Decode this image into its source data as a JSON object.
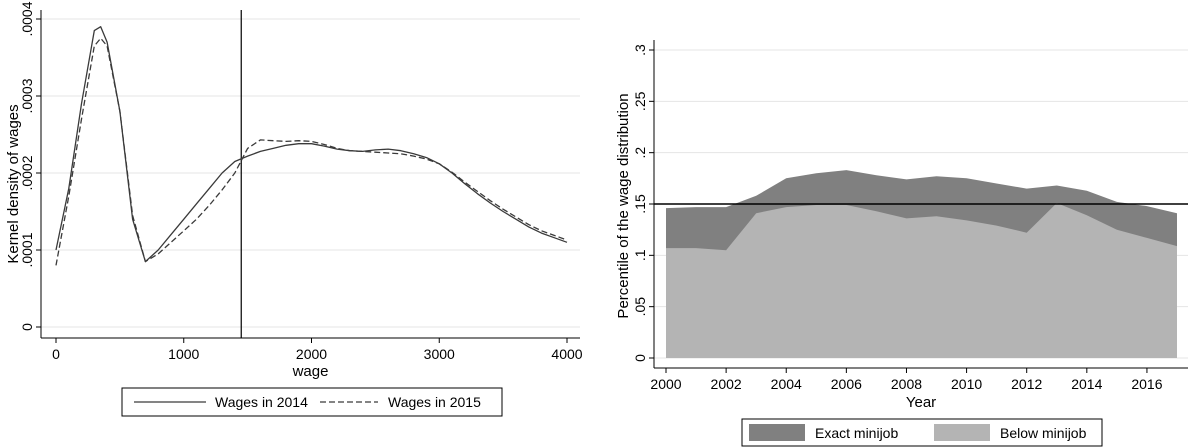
{
  "chart_data": [
    {
      "type": "line",
      "xlabel": "wage",
      "ylabel": "Kernel density of wages",
      "xlim": [
        0,
        4000
      ],
      "ylim": [
        0,
        0.0004
      ],
      "x_ticks": [
        0,
        1000,
        2000,
        3000,
        4000
      ],
      "x_tick_labels": [
        "0",
        "1000",
        "2000",
        "3000",
        "4000"
      ],
      "y_ticks": [
        0,
        0.0001,
        0.0002,
        0.0003,
        0.0004
      ],
      "y_tick_labels": [
        "0",
        ".0001",
        ".0002",
        ".0003",
        ".0004"
      ],
      "grid": true,
      "legend_position": "bottom",
      "reference_line_x": 1450,
      "series": [
        {
          "name": "Wages in 2014",
          "style": "solid",
          "points": [
            [
              0,
              0.0001
            ],
            [
              100,
              0.00018
            ],
            [
              200,
              0.00029
            ],
            [
              300,
              0.000385
            ],
            [
              350,
              0.00039
            ],
            [
              400,
              0.00037
            ],
            [
              500,
              0.00028
            ],
            [
              600,
              0.00014
            ],
            [
              700,
              8.5e-05
            ],
            [
              800,
              0.0001
            ],
            [
              900,
              0.00012
            ],
            [
              1000,
              0.00014
            ],
            [
              1100,
              0.00016
            ],
            [
              1200,
              0.00018
            ],
            [
              1300,
              0.0002
            ],
            [
              1400,
              0.000215
            ],
            [
              1500,
              0.000222
            ],
            [
              1600,
              0.000228
            ],
            [
              1700,
              0.000232
            ],
            [
              1800,
              0.000236
            ],
            [
              1900,
              0.000238
            ],
            [
              2000,
              0.000238
            ],
            [
              2100,
              0.000235
            ],
            [
              2200,
              0.000231
            ],
            [
              2300,
              0.000229
            ],
            [
              2400,
              0.000228
            ],
            [
              2500,
              0.00023
            ],
            [
              2600,
              0.000231
            ],
            [
              2700,
              0.000229
            ],
            [
              2800,
              0.000225
            ],
            [
              2900,
              0.00022
            ],
            [
              3000,
              0.000212
            ],
            [
              3100,
              0.0002
            ],
            [
              3200,
              0.000186
            ],
            [
              3300,
              0.000173
            ],
            [
              3400,
              0.000161
            ],
            [
              3500,
              0.00015
            ],
            [
              3600,
              0.00014
            ],
            [
              3700,
              0.00013
            ],
            [
              3800,
              0.000122
            ],
            [
              3900,
              0.000116
            ],
            [
              4000,
              0.00011
            ]
          ]
        },
        {
          "name": "Wages in 2015",
          "style": "dashed",
          "points": [
            [
              0,
              8e-05
            ],
            [
              100,
              0.00017
            ],
            [
              200,
              0.00027
            ],
            [
              300,
              0.000365
            ],
            [
              350,
              0.000375
            ],
            [
              400,
              0.000365
            ],
            [
              500,
              0.00028
            ],
            [
              600,
              0.000145
            ],
            [
              700,
              8.5e-05
            ],
            [
              800,
              9.5e-05
            ],
            [
              900,
              0.00011
            ],
            [
              1000,
              0.000125
            ],
            [
              1100,
              0.00014
            ],
            [
              1200,
              0.000158
            ],
            [
              1300,
              0.000178
            ],
            [
              1400,
              0.0002
            ],
            [
              1500,
              0.000232
            ],
            [
              1600,
              0.000243
            ],
            [
              1700,
              0.000242
            ],
            [
              1800,
              0.000241
            ],
            [
              1900,
              0.000242
            ],
            [
              2000,
              0.000241
            ],
            [
              2100,
              0.000237
            ],
            [
              2200,
              0.000232
            ],
            [
              2300,
              0.000229
            ],
            [
              2400,
              0.000228
            ],
            [
              2500,
              0.000227
            ],
            [
              2600,
              0.000226
            ],
            [
              2700,
              0.000225
            ],
            [
              2800,
              0.000222
            ],
            [
              2900,
              0.000218
            ],
            [
              3000,
              0.000212
            ],
            [
              3100,
              0.000201
            ],
            [
              3200,
              0.000188
            ],
            [
              3300,
              0.000176
            ],
            [
              3400,
              0.000164
            ],
            [
              3500,
              0.000153
            ],
            [
              3600,
              0.000143
            ],
            [
              3700,
              0.000133
            ],
            [
              3800,
              0.000125
            ],
            [
              3900,
              0.000119
            ],
            [
              4000,
              0.000113
            ]
          ]
        }
      ]
    },
    {
      "type": "area",
      "xlabel": "Year",
      "ylabel": "Percentile of the wage distribution",
      "xlim": [
        2000,
        2017
      ],
      "ylim": [
        0,
        0.3
      ],
      "x_ticks": [
        2000,
        2002,
        2004,
        2006,
        2008,
        2010,
        2012,
        2014,
        2016
      ],
      "x_tick_labels": [
        "2000",
        "2002",
        "2004",
        "2006",
        "2008",
        "2010",
        "2012",
        "2014",
        "2016"
      ],
      "y_ticks": [
        0,
        0.05,
        0.1,
        0.15,
        0.2,
        0.25,
        0.3
      ],
      "y_tick_labels": [
        "0",
        ".05",
        ".1",
        ".15",
        ".2",
        ".25",
        ".3"
      ],
      "grid": true,
      "legend_position": "bottom",
      "reference_line_y": 0.15,
      "x": [
        2000,
        2001,
        2002,
        2003,
        2004,
        2005,
        2006,
        2007,
        2008,
        2009,
        2010,
        2011,
        2012,
        2013,
        2014,
        2015,
        2016,
        2017
      ],
      "series": [
        {
          "name": "Exact minijob",
          "color": "#808080",
          "values": [
            0.146,
            0.147,
            0.147,
            0.158,
            0.175,
            0.18,
            0.183,
            0.178,
            0.174,
            0.177,
            0.175,
            0.17,
            0.165,
            0.168,
            0.163,
            0.152,
            0.148,
            0.141
          ]
        },
        {
          "name": "Below minijob",
          "color": "#b4b4b4",
          "values": [
            0.107,
            0.107,
            0.105,
            0.141,
            0.147,
            0.149,
            0.149,
            0.143,
            0.136,
            0.138,
            0.134,
            0.129,
            0.122,
            0.151,
            0.139,
            0.125,
            0.117,
            0.109
          ]
        }
      ]
    }
  ]
}
